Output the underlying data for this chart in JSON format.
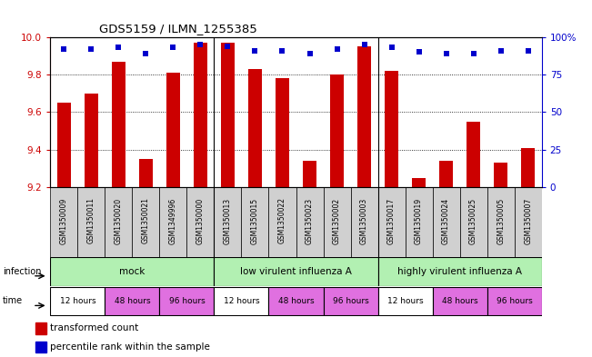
{
  "title": "GDS5159 / ILMN_1255385",
  "samples": [
    "GSM1350009",
    "GSM1350011",
    "GSM1350020",
    "GSM1350021",
    "GSM1349996",
    "GSM1350000",
    "GSM1350013",
    "GSM1350015",
    "GSM1350022",
    "GSM1350023",
    "GSM1350002",
    "GSM1350003",
    "GSM1350017",
    "GSM1350019",
    "GSM1350024",
    "GSM1350025",
    "GSM1350005",
    "GSM1350007"
  ],
  "bar_values": [
    9.65,
    9.7,
    9.87,
    9.35,
    9.81,
    9.97,
    9.97,
    9.83,
    9.78,
    9.34,
    9.8,
    9.95,
    9.82,
    9.25,
    9.34,
    9.55,
    9.33,
    9.41
  ],
  "dot_values": [
    92,
    92,
    93,
    89,
    93,
    95,
    94,
    91,
    91,
    89,
    92,
    95,
    93,
    90,
    89,
    89,
    91,
    91
  ],
  "ylim_left": [
    9.2,
    10.0
  ],
  "ylim_right": [
    0,
    100
  ],
  "yticks_left": [
    9.2,
    9.4,
    9.6,
    9.8,
    10.0
  ],
  "yticks_right": [
    0,
    25,
    50,
    75,
    100
  ],
  "ytick_labels_right": [
    "0",
    "25",
    "50",
    "75",
    "100%"
  ],
  "bar_color": "#cc0000",
  "dot_color": "#0000cc",
  "background_color": "#ffffff",
  "bar_bottom": 9.2,
  "infection_colors": [
    "#b2f0b2",
    "#b2f0b2",
    "#b2f0b2"
  ],
  "infection_labels": [
    "mock",
    "low virulent influenza A",
    "highly virulent influenza A"
  ],
  "time_colors_12": "#ffffff",
  "time_colors_48": "#e070e0",
  "time_colors_96": "#e070e0",
  "sample_box_color": "#d0d0d0",
  "group_sep": [
    5.5,
    11.5
  ],
  "legend_items": [
    {
      "label": "transformed count",
      "color": "#cc0000"
    },
    {
      "label": "percentile rank within the sample",
      "color": "#0000cc"
    }
  ]
}
